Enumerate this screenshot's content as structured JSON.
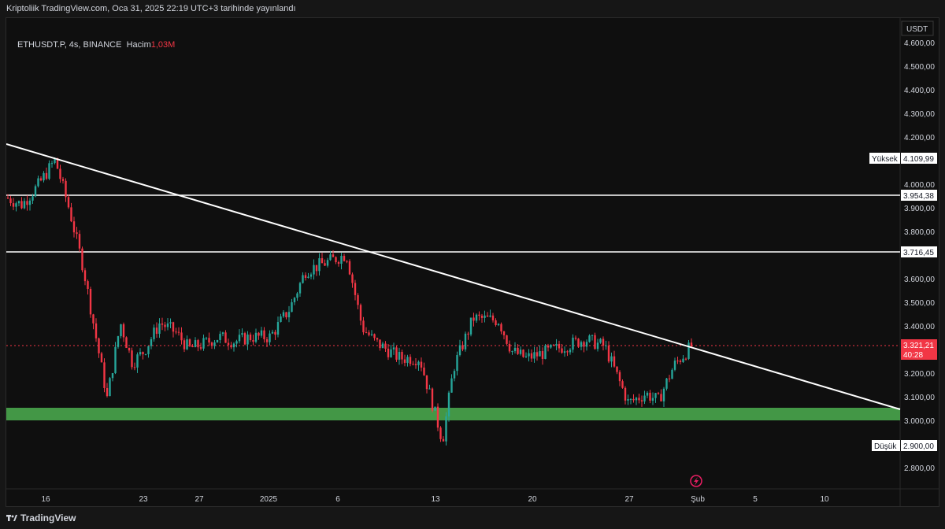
{
  "header": {
    "text": "Kriptoliik TradingView.com, Oca 31, 2025 22:19 UTC+3 tarihinde yayınlandı"
  },
  "legend": {
    "symbol": "ETHUSDT.P, 4s, BINANCE",
    "volume_label": "Hacim",
    "volume_value": "1,03M"
  },
  "axis": {
    "currency": "USDT",
    "price_ticks": [
      "4.600,00",
      "4.500,00",
      "4.400,00",
      "4.300,00",
      "4.200,00",
      "4.000,00",
      "3.900,00",
      "3.800,00",
      "3.600,00",
      "3.500,00",
      "3.400,00",
      "3.200,00",
      "3.100,00",
      "3.000,00",
      "2.800,00"
    ],
    "time_ticks": [
      "16",
      "23",
      "27",
      "2025",
      "6",
      "13",
      "20",
      "27",
      "Şub",
      "5",
      "10"
    ]
  },
  "labels": {
    "high_label": "Yüksek",
    "high_value": "4.109,99",
    "low_label": "Düşük",
    "low_value": "2.900,00",
    "level_1": "3.954,38",
    "level_2": "3.716,45",
    "last_price": "3.321,21",
    "countdown": "40:28"
  },
  "footer": {
    "brand": "TradingView"
  },
  "colors": {
    "up": "#26a69a",
    "down": "#f23645",
    "support_zone": "#4caf50",
    "line": "#ffffff",
    "last_price_bg": "#f23645"
  },
  "chart_data": {
    "type": "candlestick",
    "symbol": "ETHUSDT.P",
    "timeframe": "4h",
    "exchange": "BINANCE",
    "y_range": [
      2700,
      4700
    ],
    "high": 4109.99,
    "low": 2900.0,
    "last_price": 3321.21,
    "horizontal_levels": [
      3954.38,
      3716.45
    ],
    "support_zone": [
      3005,
      3055
    ],
    "trendline": {
      "from": [
        "Jan 13 start",
        4170
      ],
      "to": [
        "after Feb 10",
        3045
      ]
    },
    "price_path": [
      [
        "Jan 13",
        3950
      ],
      [
        "Jan 15",
        3920
      ],
      [
        "Jan 16",
        4000
      ],
      [
        "Jan 17",
        4110
      ],
      [
        "Jan 18",
        3900
      ],
      [
        "Jan 19",
        3650
      ],
      [
        "Jan 20",
        3100
      ],
      [
        "Jan 21",
        3420
      ],
      [
        "Jan 22",
        3250
      ],
      [
        "Jan 23",
        3300
      ],
      [
        "Jan 24",
        3420
      ],
      [
        "Jan 25",
        3380
      ],
      [
        "Jan 26",
        3310
      ],
      [
        "Jan 27",
        3330
      ],
      [
        "Jan 28",
        3360
      ],
      [
        "Jan 29",
        3340
      ],
      [
        "Jan 30",
        3360
      ],
      [
        "Jan 31",
        3360
      ],
      [
        "Jan 1",
        3480
      ],
      [
        "Jan 4",
        3640
      ],
      [
        "Jan 6",
        3710
      ],
      [
        "Jan 7",
        3400
      ],
      [
        "Jan 8",
        3340
      ],
      [
        "Jan 10",
        3270
      ],
      [
        "Jan 12",
        3270
      ],
      [
        "Jan 13",
        2920
      ],
      [
        "Jan 14",
        3230
      ],
      [
        "Jan 16",
        3440
      ],
      [
        "Jan 18",
        3430
      ],
      [
        "Jan 19",
        3300
      ],
      [
        "Jan 20",
        3270
      ],
      [
        "Jan 22",
        3300
      ],
      [
        "Jan 24",
        3350
      ],
      [
        "Jan 25",
        3320
      ],
      [
        "Jan 27",
        3080
      ],
      [
        "Jan 28",
        3120
      ],
      [
        "Jan 29",
        3090
      ],
      [
        "Jan 30",
        3240
      ],
      [
        "Jan 31",
        3321
      ]
    ]
  }
}
